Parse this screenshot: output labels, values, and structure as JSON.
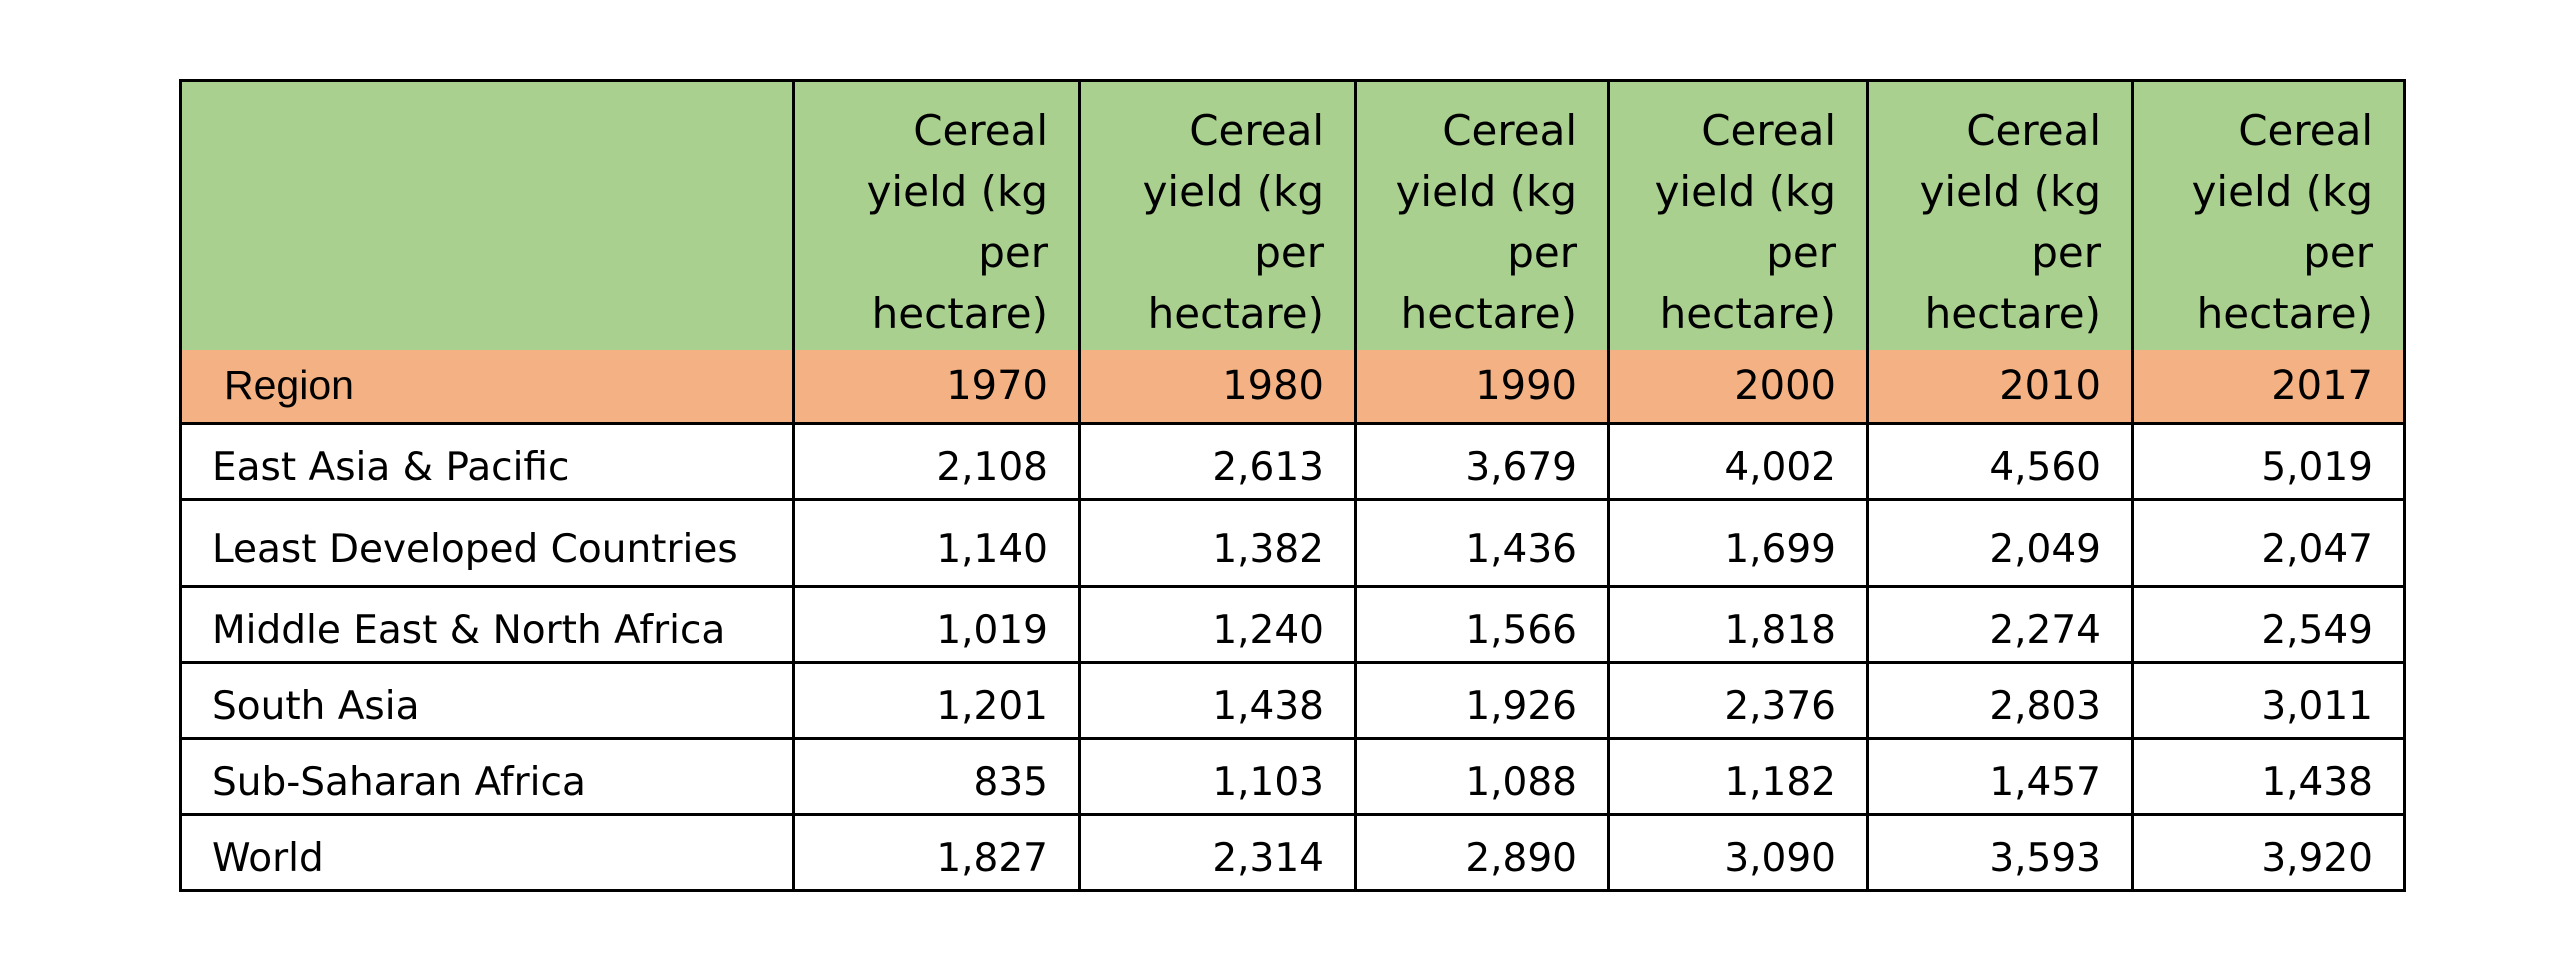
{
  "table": {
    "measure_label": "Cereal yield (kg per hectare)",
    "region_header": "Region",
    "years": [
      "1970",
      "1980",
      "1990",
      "2000",
      "2010",
      "2017"
    ],
    "rows": [
      {
        "region": "East Asia & Pacific",
        "values": [
          "2,108",
          "2,613",
          "3,679",
          "4,002",
          "4,560",
          "5,019"
        ]
      },
      {
        "region": "Least Developed Countries",
        "values": [
          "1,140",
          "1,382",
          "1,436",
          "1,699",
          "2,049",
          "2,047"
        ]
      },
      {
        "region": "Middle East & North Africa",
        "values": [
          "1,019",
          "1,240",
          "1,566",
          "1,818",
          "2,274",
          "2,549"
        ]
      },
      {
        "region": "South Asia",
        "values": [
          "1,201",
          "1,438",
          "1,926",
          "2,376",
          "2,803",
          "3,011"
        ]
      },
      {
        "region": "Sub-Saharan Africa",
        "values": [
          "835",
          "1,103",
          "1,088",
          "1,182",
          "1,457",
          "1,438"
        ]
      },
      {
        "region": "World",
        "values": [
          "1,827",
          "2,314",
          "2,890",
          "3,090",
          "3,593",
          "3,920"
        ]
      }
    ]
  },
  "colors": {
    "header_green": "#a9d08e",
    "header_orange": "#f4b183",
    "border": "#000000"
  }
}
